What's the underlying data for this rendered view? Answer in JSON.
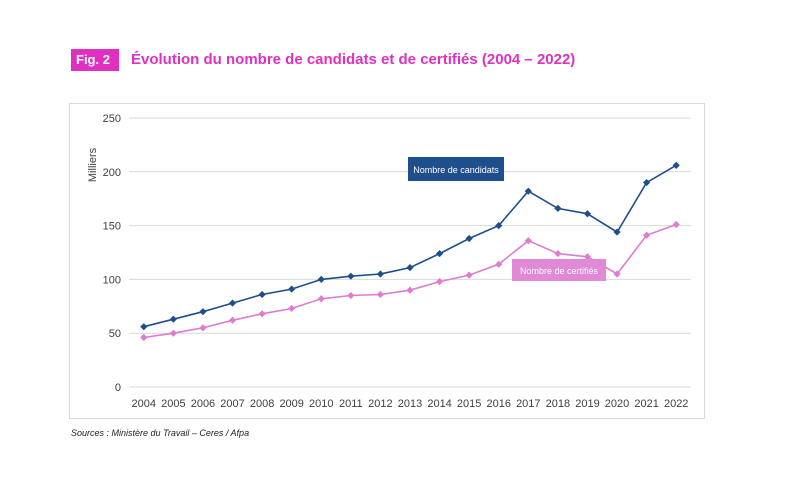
{
  "figure": {
    "badge": "Fig. 2",
    "title": "Évolution du nombre de candidats et de certifiés  (2004 – 2022)",
    "source": "Sources : Ministère du Travail – Ceres / Afpa"
  },
  "colors": {
    "accent": "#e030c0",
    "candidats": "#1f4e8c",
    "certifies": "#e07ad2",
    "certifies_label_bg": "#e089d6",
    "grid": "#d9d9d9",
    "axis_text": "#404040"
  },
  "chart_data": {
    "type": "line",
    "title": "Évolution du nombre de candidats et de certifiés  (2004 – 2022)",
    "xlabel": "",
    "ylabel": "Milliers",
    "ylim": [
      0,
      250
    ],
    "yticks": [
      0,
      50,
      100,
      150,
      200,
      250
    ],
    "grid": true,
    "categories": [
      "2004",
      "2005",
      "2006",
      "2007",
      "2008",
      "2009",
      "2010",
      "2011",
      "2012",
      "2013",
      "2014",
      "2015",
      "2016",
      "2017",
      "2018",
      "2019",
      "2020",
      "2021",
      "2022"
    ],
    "series": [
      {
        "name": "Nombre de candidats",
        "values": [
          56,
          63,
          70,
          78,
          86,
          91,
          100,
          103,
          105,
          111,
          124,
          138,
          150,
          182,
          166,
          161,
          144,
          190,
          206
        ]
      },
      {
        "name": "Nombre de certifiés",
        "values": [
          46,
          50,
          55,
          62,
          68,
          73,
          82,
          85,
          86,
          90,
          98,
          104,
          114,
          136,
          124,
          121,
          105,
          141,
          151
        ]
      }
    ]
  }
}
